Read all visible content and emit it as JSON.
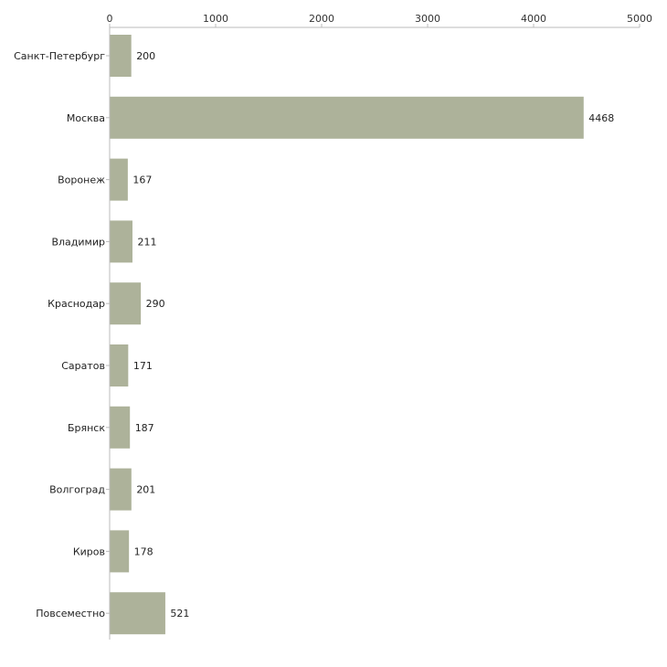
{
  "chart_data": {
    "type": "bar",
    "orientation": "horizontal",
    "title": "",
    "xlabel": "",
    "ylabel": "",
    "xlim": [
      0,
      5000
    ],
    "x_ticks": [
      0,
      1000,
      2000,
      3000,
      4000,
      5000
    ],
    "x_tick_labels": [
      "0",
      "1000",
      "2000",
      "3000",
      "4000",
      "5000"
    ],
    "x_axis_position": "top",
    "grid": false,
    "legend": "none",
    "categories": [
      "Санкт-Петербург",
      "Москва",
      "Воронеж",
      "Владимир",
      "Краснодар",
      "Саратов",
      "Брянск",
      "Волгоград",
      "Киров",
      "Повсеместно"
    ],
    "values": [
      200,
      4468,
      167,
      211,
      290,
      171,
      187,
      201,
      178,
      521
    ],
    "value_labels": [
      "200",
      "4468",
      "167",
      "211",
      "290",
      "171",
      "187",
      "201",
      "178",
      "521"
    ],
    "colors": {
      "bar": "#adb29a",
      "axis": "#bbbbbb",
      "text": "#222222"
    }
  }
}
